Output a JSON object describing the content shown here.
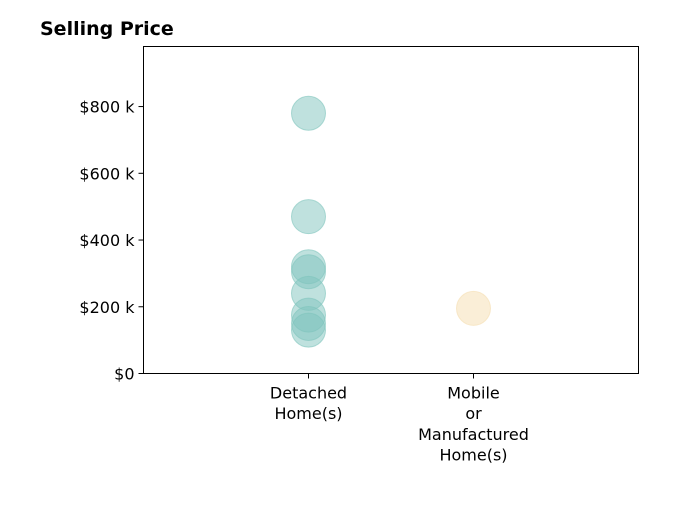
{
  "chart_data": {
    "type": "scatter",
    "title": "Selling Price",
    "xlabel": "",
    "ylabel": "",
    "categories": [
      [
        "Detached",
        "Home(s)"
      ],
      [
        "Mobile",
        "or",
        "Manufactured",
        "Home(s)"
      ]
    ],
    "y_ticks": [
      0,
      200000,
      400000,
      600000,
      800000
    ],
    "y_tick_labels": [
      "$0",
      "$200 k",
      "$400 k",
      "$600 k",
      "$800 k"
    ],
    "ylim": [
      0,
      980000
    ],
    "xlim": [
      -1,
      2
    ],
    "grid": false,
    "legend": "none",
    "series": [
      {
        "category_index": 0,
        "color": "#7fc4bd",
        "values": [
          780000,
          470000,
          320000,
          305000,
          240000,
          175000,
          150000,
          130000
        ]
      },
      {
        "category_index": 1,
        "color": "#f5ddb0",
        "values": [
          195000
        ]
      }
    ]
  }
}
